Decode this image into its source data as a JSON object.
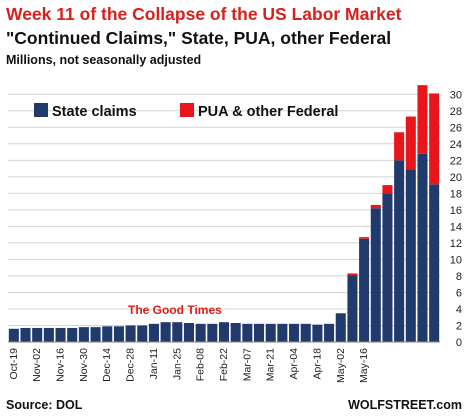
{
  "header": {
    "title": "Week 11 of the Collapse of the US Labor Market",
    "subtitle": "\"Continued Claims,\" State, PUA, other Federal",
    "units": "Millions, not seasonally adjusted"
  },
  "footer": {
    "source": "Source: DOL",
    "brand": "WOLFSTREET.com"
  },
  "colors": {
    "state": "#1f3a6b",
    "pua": "#e8161a",
    "annotation": "#d9201c"
  },
  "chart_data": {
    "type": "bar",
    "stacked": true,
    "ylim": [
      0,
      31
    ],
    "yticks": [
      0,
      2,
      4,
      6,
      8,
      10,
      12,
      14,
      16,
      18,
      20,
      22,
      24,
      26,
      28,
      30
    ],
    "y_axis_side": "right",
    "grid": true,
    "legend_position": "top-left",
    "x_tick_labels": [
      "Oct-19",
      "Nov-02",
      "Nov-16",
      "Nov-30",
      "Dec-14",
      "Dec-28",
      "Jan-11",
      "Jan-25",
      "Feb-08",
      "Feb-22",
      "Mar-07",
      "Mar-21",
      "Apr-04",
      "Apr-18",
      "May-02",
      "May-16"
    ],
    "series": [
      {
        "name": "State claims",
        "values": [
          1.6,
          1.7,
          1.7,
          1.7,
          1.7,
          1.7,
          1.8,
          1.8,
          1.9,
          1.9,
          2.0,
          2.0,
          2.2,
          2.4,
          2.4,
          2.3,
          2.2,
          2.2,
          2.4,
          2.3,
          2.2,
          2.2,
          2.2,
          2.2,
          2.2,
          2.2,
          2.1,
          2.2,
          3.4,
          8.1,
          12.5,
          16.2,
          18.0,
          22.0,
          20.9,
          22.8,
          19.1
        ]
      },
      {
        "name": "PUA & other Federal",
        "values": [
          0,
          0,
          0,
          0,
          0,
          0,
          0,
          0,
          0,
          0,
          0,
          0,
          0,
          0,
          0,
          0,
          0,
          0,
          0,
          0,
          0,
          0,
          0,
          0,
          0,
          0,
          0,
          0,
          0.1,
          0.2,
          0.2,
          0.4,
          1.0,
          3.4,
          6.4,
          8.3,
          11.0
        ]
      }
    ],
    "annotations": [
      {
        "text": "The Good Times"
      }
    ]
  }
}
